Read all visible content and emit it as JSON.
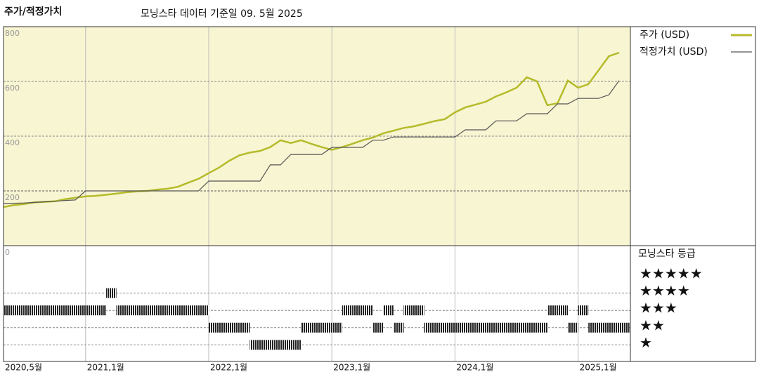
{
  "chart_data": [
    {
      "type": "line",
      "title": "주가/적정가치",
      "subtitle": "모닝스타 데이터 기준일 09. 5월 2025",
      "x": [
        "2020-05",
        "2020-06",
        "2020-07",
        "2020-08",
        "2020-09",
        "2020-10",
        "2020-11",
        "2020-12",
        "2021-01",
        "2021-02",
        "2021-03",
        "2021-04",
        "2021-05",
        "2021-06",
        "2021-07",
        "2021-08",
        "2021-09",
        "2021-10",
        "2021-11",
        "2021-12",
        "2022-01",
        "2022-02",
        "2022-03",
        "2022-04",
        "2022-05",
        "2022-06",
        "2022-07",
        "2022-08",
        "2022-09",
        "2022-10",
        "2022-11",
        "2022-12",
        "2023-01",
        "2023-02",
        "2023-03",
        "2023-04",
        "2023-05",
        "2023-06",
        "2023-07",
        "2023-08",
        "2023-09",
        "2023-10",
        "2023-11",
        "2023-12",
        "2024-01",
        "2024-02",
        "2024-03",
        "2024-04",
        "2024-05",
        "2024-06",
        "2024-07",
        "2024-08",
        "2024-09",
        "2024-10",
        "2024-11",
        "2024-12",
        "2025-01",
        "2025-02",
        "2025-03",
        "2025-04",
        "2025-05"
      ],
      "series": [
        {
          "name": "주가 (USD)",
          "color": "#b5bb2a",
          "values": [
            141,
            148,
            152,
            158,
            160,
            162,
            170,
            175,
            180,
            182,
            186,
            190,
            195,
            198,
            200,
            205,
            208,
            215,
            230,
            244,
            265,
            285,
            310,
            330,
            340,
            346,
            360,
            385,
            375,
            385,
            372,
            360,
            350,
            360,
            372,
            385,
            395,
            410,
            420,
            430,
            436,
            445,
            455,
            462,
            487,
            505,
            515,
            526,
            545,
            560,
            577,
            615,
            600,
            513,
            520,
            603,
            577,
            590,
            641,
            692,
            705
          ]
        },
        {
          "name": "적정가치 (USD)",
          "color": "#555555",
          "values": [
            154,
            155,
            156,
            158,
            160,
            162,
            165,
            167,
            200,
            200,
            200,
            200,
            200,
            200,
            200,
            200,
            200,
            200,
            200,
            200,
            236,
            236,
            236,
            236,
            236,
            236,
            295,
            295,
            333,
            333,
            333,
            333,
            359,
            359,
            359,
            359,
            385,
            385,
            397,
            397,
            397,
            397,
            397,
            397,
            397,
            423,
            423,
            423,
            456,
            456,
            456,
            482,
            482,
            482,
            518,
            518,
            538,
            538,
            538,
            551,
            603
          ]
        }
      ],
      "ylim": [
        0,
        800
      ],
      "yticks": [
        0,
        200,
        400,
        600,
        800
      ],
      "xticks": [
        {
          "value": "2020-05",
          "label": "2020,5월"
        },
        {
          "value": "2021-01",
          "label": "2021,1월"
        },
        {
          "value": "2022-01",
          "label": "2022,1월"
        },
        {
          "value": "2023-01",
          "label": "2023,1월"
        },
        {
          "value": "2024-01",
          "label": "2024,1월"
        },
        {
          "value": "2025-01",
          "label": "2025,1월"
        }
      ],
      "grid": true,
      "background": "#f8f5d2"
    },
    {
      "type": "rating",
      "title": "모닝스타 등급",
      "levels": [
        5,
        4,
        3,
        2,
        1
      ],
      "level_labels": [
        "★★★★★",
        "★★★★",
        "★★★",
        "★★",
        "★"
      ],
      "ratings": [
        3,
        3,
        3,
        3,
        3,
        3,
        3,
        3,
        3,
        3,
        4,
        3,
        3,
        3,
        3,
        3,
        3,
        3,
        3,
        3,
        2,
        2,
        2,
        2,
        1,
        1,
        1,
        1,
        1,
        2,
        2,
        2,
        2,
        3,
        3,
        3,
        2,
        3,
        2,
        3,
        3,
        2,
        2,
        2,
        2,
        2,
        2,
        2,
        2,
        2,
        2,
        2,
        2,
        3,
        3,
        2,
        3,
        2,
        2,
        2,
        2
      ],
      "color": "#222222"
    }
  ]
}
